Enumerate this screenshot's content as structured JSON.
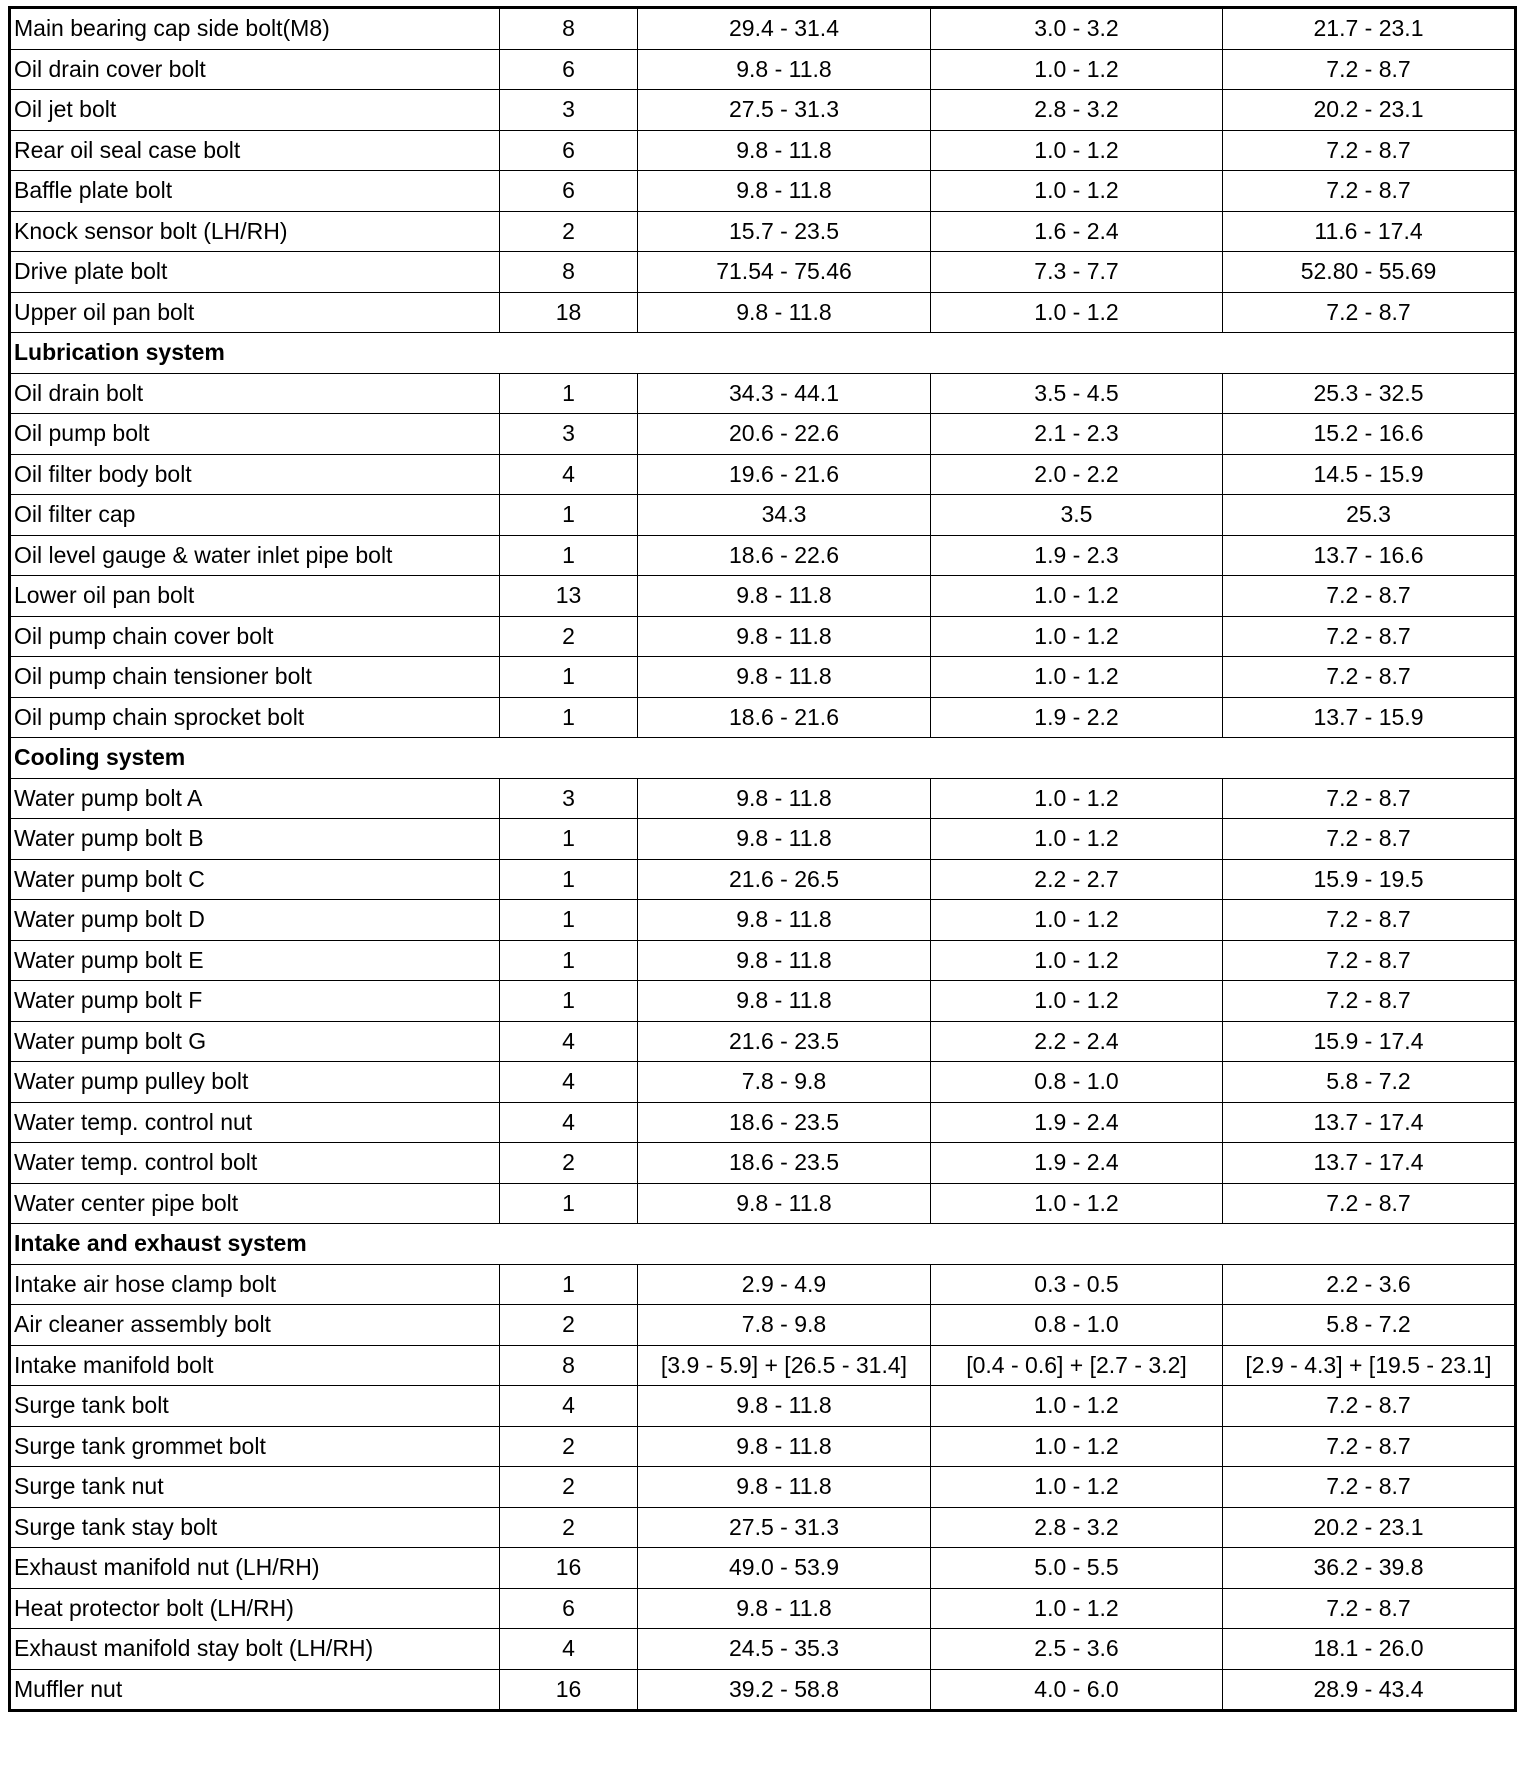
{
  "rows": [
    {
      "name": "Main bearing cap side bolt(M8)",
      "qty": "8",
      "nm": "29.4 - 31.4",
      "kgfm": "3.0 - 3.2",
      "lbft": "21.7 - 23.1"
    },
    {
      "name": "Oil drain cover bolt",
      "qty": "6",
      "nm": "9.8 - 11.8",
      "kgfm": "1.0 - 1.2",
      "lbft": "7.2 - 8.7"
    },
    {
      "name": "Oil jet bolt",
      "qty": "3",
      "nm": "27.5 - 31.3",
      "kgfm": "2.8 - 3.2",
      "lbft": "20.2 - 23.1"
    },
    {
      "name": "Rear oil seal case bolt",
      "qty": "6",
      "nm": "9.8 - 11.8",
      "kgfm": "1.0 - 1.2",
      "lbft": "7.2 - 8.7"
    },
    {
      "name": "Baffle plate bolt",
      "qty": "6",
      "nm": "9.8 - 11.8",
      "kgfm": "1.0 - 1.2",
      "lbft": "7.2 - 8.7"
    },
    {
      "name": "Knock sensor bolt (LH/RH)",
      "qty": "2",
      "nm": "15.7 - 23.5",
      "kgfm": "1.6 - 2.4",
      "lbft": "11.6 - 17.4"
    },
    {
      "name": "Drive plate bolt",
      "qty": "8",
      "nm": "71.54 - 75.46",
      "kgfm": "7.3 - 7.7",
      "lbft": "52.80 - 55.69"
    },
    {
      "name": "Upper oil pan bolt",
      "qty": "18",
      "nm": "9.8 - 11.8",
      "kgfm": "1.0 - 1.2",
      "lbft": "7.2 - 8.7"
    },
    {
      "section": "Lubrication system"
    },
    {
      "name": "Oil drain bolt",
      "qty": "1",
      "nm": "34.3 - 44.1",
      "kgfm": "3.5 - 4.5",
      "lbft": "25.3 - 32.5"
    },
    {
      "name": "Oil pump bolt",
      "qty": "3",
      "nm": "20.6 - 22.6",
      "kgfm": "2.1 - 2.3",
      "lbft": "15.2 - 16.6"
    },
    {
      "name": "Oil filter body bolt",
      "qty": "4",
      "nm": "19.6 - 21.6",
      "kgfm": "2.0 - 2.2",
      "lbft": "14.5 - 15.9"
    },
    {
      "name": "Oil filter cap",
      "qty": "1",
      "nm": "34.3",
      "kgfm": "3.5",
      "lbft": "25.3"
    },
    {
      "name": "Oil level gauge & water inlet pipe bolt",
      "qty": "1",
      "nm": "18.6 - 22.6",
      "kgfm": "1.9 - 2.3",
      "lbft": "13.7 - 16.6"
    },
    {
      "name": "Lower oil pan bolt",
      "qty": "13",
      "nm": "9.8 - 11.8",
      "kgfm": "1.0 - 1.2",
      "lbft": "7.2 - 8.7"
    },
    {
      "name": "Oil pump chain cover bolt",
      "qty": "2",
      "nm": "9.8 - 11.8",
      "kgfm": "1.0 - 1.2",
      "lbft": "7.2 - 8.7"
    },
    {
      "name": "Oil pump chain tensioner bolt",
      "qty": "1",
      "nm": "9.8 - 11.8",
      "kgfm": "1.0 - 1.2",
      "lbft": "7.2 - 8.7"
    },
    {
      "name": "Oil pump chain sprocket bolt",
      "qty": "1",
      "nm": "18.6 - 21.6",
      "kgfm": "1.9 - 2.2",
      "lbft": "13.7 - 15.9"
    },
    {
      "section": "Cooling system"
    },
    {
      "name": "Water pump bolt A",
      "qty": "3",
      "nm": "9.8 - 11.8",
      "kgfm": "1.0 - 1.2",
      "lbft": "7.2 - 8.7"
    },
    {
      "name": "Water pump bolt B",
      "qty": "1",
      "nm": "9.8 - 11.8",
      "kgfm": "1.0 - 1.2",
      "lbft": "7.2 - 8.7"
    },
    {
      "name": "Water pump bolt C",
      "qty": "1",
      "nm": "21.6 - 26.5",
      "kgfm": "2.2 - 2.7",
      "lbft": "15.9 - 19.5"
    },
    {
      "name": "Water pump bolt D",
      "qty": "1",
      "nm": "9.8 - 11.8",
      "kgfm": "1.0 - 1.2",
      "lbft": "7.2 - 8.7"
    },
    {
      "name": "Water pump bolt E",
      "qty": "1",
      "nm": "9.8 - 11.8",
      "kgfm": "1.0 - 1.2",
      "lbft": "7.2 - 8.7"
    },
    {
      "name": "Water pump bolt F",
      "qty": "1",
      "nm": "9.8 - 11.8",
      "kgfm": "1.0 - 1.2",
      "lbft": "7.2 - 8.7"
    },
    {
      "name": "Water pump bolt G",
      "qty": "4",
      "nm": "21.6 - 23.5",
      "kgfm": "2.2 - 2.4",
      "lbft": "15.9 - 17.4"
    },
    {
      "name": "Water pump pulley bolt",
      "qty": "4",
      "nm": "7.8 - 9.8",
      "kgfm": "0.8 - 1.0",
      "lbft": "5.8 - 7.2"
    },
    {
      "name": "Water temp. control nut",
      "qty": "4",
      "nm": "18.6 - 23.5",
      "kgfm": "1.9 - 2.4",
      "lbft": "13.7 - 17.4"
    },
    {
      "name": "Water temp. control bolt",
      "qty": "2",
      "nm": "18.6 - 23.5",
      "kgfm": "1.9 - 2.4",
      "lbft": "13.7 - 17.4"
    },
    {
      "name": "Water center pipe bolt",
      "qty": "1",
      "nm": "9.8 - 11.8",
      "kgfm": "1.0 - 1.2",
      "lbft": "7.2 - 8.7"
    },
    {
      "section": "Intake and exhaust system"
    },
    {
      "name": "Intake air hose clamp bolt",
      "qty": "1",
      "nm": "2.9 - 4.9",
      "kgfm": "0.3 - 0.5",
      "lbft": "2.2 - 3.6"
    },
    {
      "name": "Air cleaner assembly bolt",
      "qty": "2",
      "nm": "7.8 - 9.8",
      "kgfm": "0.8 - 1.0",
      "lbft": "5.8 - 7.2"
    },
    {
      "name": "Intake manifold bolt",
      "qty": "8",
      "nm": "[3.9 - 5.9] + [26.5 - 31.4]",
      "kgfm": "[0.4 - 0.6] + [2.7 - 3.2]",
      "lbft": "[2.9 - 4.3] + [19.5 - 23.1]"
    },
    {
      "name": "Surge tank bolt",
      "qty": "4",
      "nm": "9.8 - 11.8",
      "kgfm": "1.0 - 1.2",
      "lbft": "7.2 - 8.7"
    },
    {
      "name": "Surge tank grommet bolt",
      "qty": "2",
      "nm": "9.8 - 11.8",
      "kgfm": "1.0 - 1.2",
      "lbft": "7.2 - 8.7"
    },
    {
      "name": "Surge tank nut",
      "qty": "2",
      "nm": "9.8 - 11.8",
      "kgfm": "1.0 - 1.2",
      "lbft": "7.2 - 8.7"
    },
    {
      "name": "Surge tank stay bolt",
      "qty": "2",
      "nm": "27.5 - 31.3",
      "kgfm": "2.8 - 3.2",
      "lbft": "20.2 - 23.1"
    },
    {
      "name": "Exhaust manifold nut (LH/RH)",
      "qty": "16",
      "nm": "49.0 - 53.9",
      "kgfm": "5.0 - 5.5",
      "lbft": "36.2 - 39.8"
    },
    {
      "name": "Heat protector bolt (LH/RH)",
      "qty": "6",
      "nm": "9.8 - 11.8",
      "kgfm": "1.0 - 1.2",
      "lbft": "7.2 - 8.7"
    },
    {
      "name": "Exhaust manifold stay bolt (LH/RH)",
      "qty": "4",
      "nm": "24.5 - 35.3",
      "kgfm": "2.5 - 3.6",
      "lbft": "18.1 - 26.0"
    },
    {
      "name": "Muffler nut",
      "qty": "16",
      "nm": "39.2 - 58.8",
      "kgfm": "4.0 - 6.0",
      "lbft": "28.9 - 43.4"
    }
  ]
}
